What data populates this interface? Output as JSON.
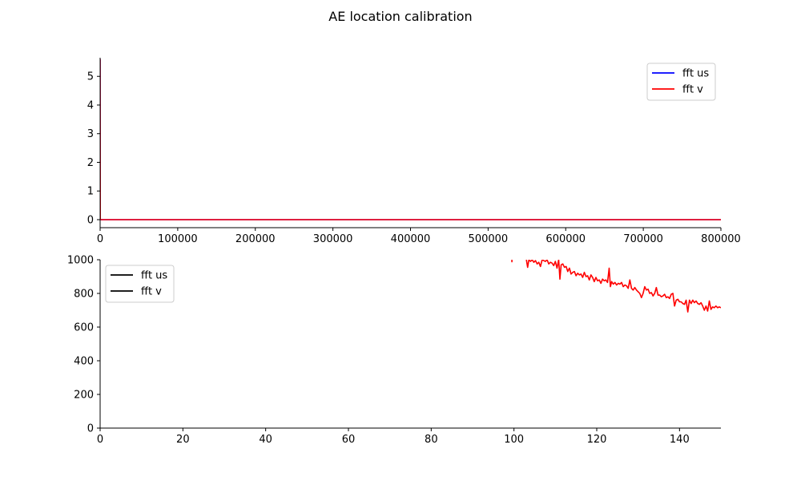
{
  "figure": {
    "title": "AE location calibration"
  },
  "chart_data": [
    {
      "type": "line",
      "title": "",
      "xlabel": "",
      "ylabel": "",
      "xlim": [
        0,
        800000
      ],
      "ylim": [
        -0.28,
        5.65
      ],
      "xticks": [
        0,
        100000,
        200000,
        300000,
        400000,
        500000,
        600000,
        700000,
        800000
      ],
      "xtick_labels": [
        "0",
        "100000",
        "200000",
        "300000",
        "400000",
        "500000",
        "600000",
        "700000",
        "800000"
      ],
      "yticks": [
        0,
        1,
        2,
        3,
        4,
        5
      ],
      "ytick_labels": [
        "0",
        "1",
        "2",
        "3",
        "4",
        "5"
      ],
      "grid": false,
      "legend": {
        "placement": "top-right",
        "entries": [
          "fft us",
          "fft v"
        ],
        "colors": [
          "#0000ff",
          "#ff0000"
        ]
      },
      "series": [
        {
          "name": "fft us",
          "color": "#0000ff",
          "x": [
            0,
            200,
            800000
          ],
          "y": [
            5.6,
            0,
            0
          ]
        },
        {
          "name": "fft v",
          "color": "#ff0000",
          "x": [
            0,
            200,
            800000
          ],
          "y": [
            5.6,
            0,
            0
          ]
        }
      ]
    },
    {
      "type": "line",
      "title": "",
      "xlabel": "",
      "ylabel": "",
      "xlim": [
        0,
        150
      ],
      "ylim": [
        0,
        1000
      ],
      "xticks": [
        0,
        20,
        40,
        60,
        80,
        100,
        120,
        140
      ],
      "xtick_labels": [
        "0",
        "20",
        "40",
        "60",
        "80",
        "100",
        "120",
        "140"
      ],
      "yticks": [
        0,
        200,
        400,
        600,
        800,
        1000
      ],
      "ytick_labels": [
        "0",
        "200",
        "400",
        "600",
        "800",
        "1000"
      ],
      "grid": false,
      "legend": {
        "placement": "top-left",
        "entries": [
          "fft us",
          "fft v"
        ],
        "colors": [
          "#000000",
          "#000000"
        ]
      },
      "series": [
        {
          "name": "fft v",
          "color": "#ff0000",
          "segments": [
            {
              "x": [
                99.5,
                99.5
              ],
              "y": [
                1000,
                985
              ]
            },
            {
              "x": [
                103.0,
                103.3,
                103.6,
                104.0,
                104.4,
                104.8,
                105.2,
                105.6,
                106.0,
                106.4,
                106.8,
                107.2,
                107.6,
                108.0,
                108.4,
                108.8,
                109.2,
                109.6,
                110.0,
                110.4,
                110.8,
                111.1,
                111.4,
                111.8,
                112.2,
                112.6,
                113.0,
                113.4,
                113.8,
                114.2,
                114.6,
                115.0,
                115.4,
                115.8,
                116.2,
                116.6,
                117.0,
                117.4,
                117.8,
                118.2,
                118.6,
                119.0,
                119.4,
                119.8,
                120.2,
                120.6,
                121.0,
                121.4,
                121.8,
                122.2,
                122.6,
                123.0,
                123.3,
                123.6,
                124.0,
                124.4,
                124.8,
                125.2,
                125.6,
                126.0,
                126.4,
                126.8,
                127.2,
                127.6,
                128.0,
                128.4,
                128.8,
                129.2,
                129.6,
                130.0,
                130.4,
                130.8,
                131.2,
                131.6,
                132.0,
                132.4,
                132.8,
                133.2,
                133.6,
                134.0,
                134.4,
                134.8,
                135.2,
                135.6,
                136.0,
                136.4,
                136.8,
                137.2,
                137.6,
                138.0,
                138.4,
                138.8,
                139.2,
                139.6,
                140.0,
                140.4,
                140.8,
                141.2,
                141.6,
                142.0,
                142.4,
                142.8,
                143.2,
                143.6,
                144.0,
                144.4,
                144.8,
                145.2,
                145.6,
                146.0,
                146.4,
                146.8,
                147.2,
                147.6,
                148.0,
                148.4,
                148.8,
                149.2,
                149.6,
                150.0
              ],
              "y": [
                1000,
                955,
                1000,
                990,
                1000,
                985,
                995,
                975,
                985,
                960,
                1000,
                995,
                990,
                1000,
                975,
                985,
                980,
                965,
                990,
                950,
                1000,
                885,
                970,
                975,
                955,
                960,
                930,
                950,
                915,
                925,
                930,
                905,
                920,
                910,
                915,
                895,
                925,
                900,
                905,
                880,
                910,
                895,
                870,
                895,
                875,
                880,
                860,
                885,
                875,
                880,
                865,
                950,
                840,
                870,
                855,
                865,
                850,
                860,
                855,
                865,
                840,
                850,
                845,
                830,
                880,
                830,
                820,
                835,
                820,
                810,
                800,
                775,
                800,
                840,
                820,
                825,
                800,
                805,
                785,
                800,
                835,
                790,
                790,
                780,
                785,
                795,
                775,
                780,
                770,
                795,
                800,
                725,
                760,
                765,
                750,
                750,
                740,
                735,
                760,
                690,
                760,
                740,
                760,
                745,
                755,
                740,
                735,
                745,
                725,
                700,
                725,
                695,
                755,
                705,
                720,
                715,
                725,
                715,
                720,
                715
              ]
            }
          ]
        }
      ]
    }
  ]
}
